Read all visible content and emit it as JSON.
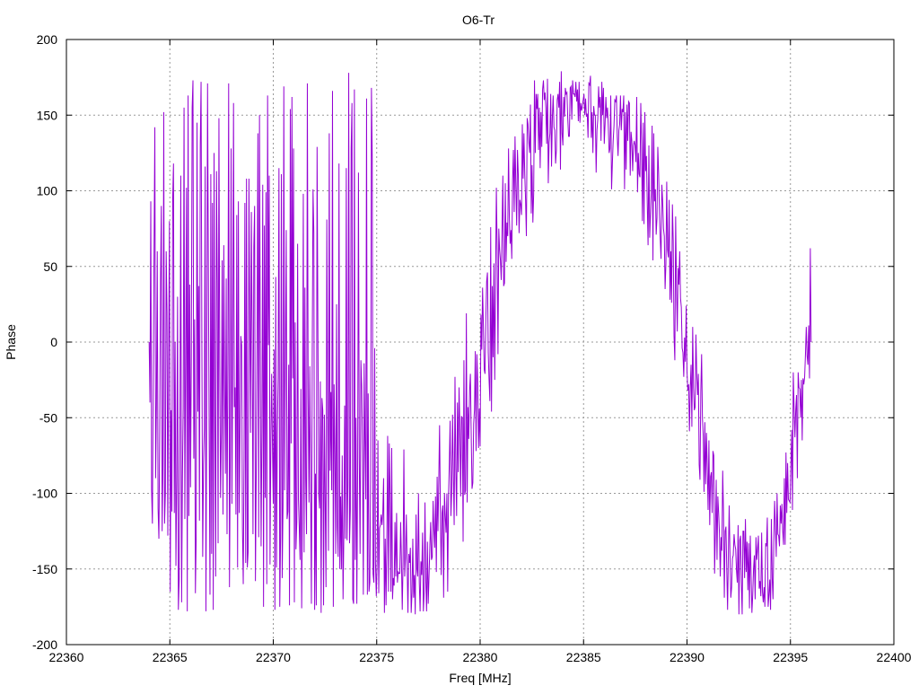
{
  "chart_data": {
    "type": "line",
    "title": "O6-Tr",
    "xlabel": "Freq [MHz]",
    "ylabel": "Phase",
    "xlim": [
      22360,
      22400
    ],
    "ylim": [
      -200,
      200
    ],
    "x_ticks": [
      22360,
      22365,
      22370,
      22375,
      22380,
      22385,
      22390,
      22395,
      22400
    ],
    "y_ticks": [
      -200,
      -150,
      -100,
      -50,
      0,
      50,
      100,
      150,
      200
    ],
    "grid": true,
    "legend": "none",
    "series_color": "#9400d3",
    "series": [
      {
        "x_start": 22364.0,
        "x_end": 22396.0,
        "points": 780,
        "values": [
          0,
          -40,
          93,
          -98,
          -120,
          -20,
          57,
          142,
          -90,
          -40,
          60,
          -110,
          -130,
          -60,
          40,
          90,
          -125,
          -80,
          152,
          -120,
          -100,
          60,
          20,
          -128,
          -10,
          80,
          -165,
          -45,
          -112,
          95,
          118,
          -113,
          0,
          -148,
          -92,
          30,
          -177,
          -157,
          -50,
          110,
          -172,
          -89,
          -43,
          155,
          -117,
          -10,
          102,
          -178,
          163,
          -115,
          38,
          -96,
          -11,
          155,
          173,
          -77,
          15,
          -166,
          -128,
          145,
          -46,
          37,
          -118,
          130,
          172,
          -2,
          -142,
          -81,
          -57,
          116,
          -178,
          -16,
          171,
          48,
          -62,
          -167,
          111,
          -140,
          92,
          -177,
          125,
          -48,
          -155,
          113,
          40,
          -133,
          148,
          -15,
          -103,
          -59,
          54,
          -114,
          64,
          -28,
          -87,
          42,
          -127,
          -14,
          171,
          -162,
          -73,
          128,
          -107,
          -13,
          158,
          -43,
          -30,
          -114,
          84,
          -149,
          93,
          -113,
          -55,
          4,
          -2,
          -123,
          -160,
          -77,
          92,
          -146,
          108,
          -149,
          -139,
          108,
          16,
          -60,
          86,
          1,
          -127,
          63,
          90,
          -158,
          -87,
          -1,
          138,
          -129,
          150,
          -7,
          -135,
          -58,
          104,
          -175,
          77,
          -103,
          99,
          -160,
          163,
          -2,
          110,
          -147,
          -67,
          -21,
          -69,
          -107,
          -5,
          -177,
          43,
          -149,
          -60,
          -23,
          115,
          -175,
          -129,
          111,
          -156,
          -108,
          169,
          -98,
          -11,
          74,
          -117,
          -112,
          -15,
          -174,
          154,
          -67,
          162,
          -24,
          128,
          -172,
          13,
          -137,
          -119,
          65,
          -104,
          -122,
          -144,
          -31,
          -176,
          -99,
          98,
          -139,
          36,
          -91,
          -127,
          171,
          -37,
          -106,
          -16,
          -93,
          -173,
          -12,
          101,
          72,
          -177,
          -87,
          -174,
          129,
          8,
          -100,
          -110,
          -26,
          -179,
          -37,
          -45,
          -174,
          -48,
          -105,
          -162,
          81,
          -37,
          -138,
          138,
          -85,
          -33,
          -98,
          166,
          -175,
          -28,
          -74,
          -140,
          25,
          -122,
          -142,
          118,
          -150,
          -102,
          -150,
          -75,
          -170,
          -126,
          -42,
          -130,
          115,
          -131,
          -94,
          178,
          -133,
          -111,
          128,
          158,
          -170,
          -173,
          167,
          -144,
          -50,
          -173,
          -85,
          112,
          -76,
          -140,
          -12,
          -29,
          -74,
          -167,
          -14,
          -65,
          -104,
          161,
          -167,
          -34,
          -165,
          -159,
          -92,
          168,
          121,
          -153,
          -159,
          -4,
          -146,
          -168,
          -145,
          -65,
          -166,
          -123,
          -121,
          -114,
          -121,
          -113,
          -90,
          -179,
          -130,
          -174,
          -133,
          -62,
          -165,
          -67,
          -99,
          -165,
          -70,
          -170,
          -156,
          -161,
          -119,
          -155,
          -113,
          -159,
          -152,
          -153,
          -153,
          -119,
          -144,
          -177,
          -145,
          -71,
          -155,
          -142,
          -114,
          -148,
          -179,
          -140,
          -146,
          -136,
          -179,
          -166,
          -130,
          -169,
          -154,
          -180,
          -114,
          -150,
          -155,
          -100,
          -159,
          -178,
          -145,
          -154,
          -126,
          -178,
          -165,
          -106,
          -157,
          -178,
          -132,
          -173,
          -155,
          -135,
          -119,
          -144,
          -142,
          -105,
          -124,
          -136,
          -102,
          -152,
          -89,
          -125,
          -92,
          -55,
          -113,
          -154,
          -113,
          -108,
          -169,
          -100,
          -115,
          -126,
          -100,
          -165,
          -102,
          -80,
          -52,
          -115,
          -98,
          -48,
          -88,
          -121,
          -23,
          -83,
          -115,
          -40,
          -86,
          -30,
          -57,
          -102,
          -49,
          -50,
          -132,
          -12,
          -101,
          -98,
          19,
          -106,
          -43,
          -64,
          -32,
          -21,
          -62,
          -97,
          -93,
          -54,
          -45,
          -6,
          -72,
          -8,
          -27,
          -70,
          -44,
          -69,
          18,
          -5,
          36,
          11,
          -18,
          -21,
          14,
          40,
          46,
          -7,
          -25,
          -39,
          76,
          -46,
          37,
          -10,
          52,
          -25,
          40,
          102,
          60,
          -8,
          75,
          61,
          54,
          41,
          75,
          110,
          37,
          39,
          105,
          53,
          79,
          70,
          128,
          83,
          65,
          74,
          55,
          107,
          127,
          86,
          136,
          103,
          77,
          127,
          111,
          72,
          94,
          91,
          84,
          144,
          108,
          138,
          111,
          94,
          70,
          148,
          144,
          132,
          125,
          157,
          85,
          117,
          79,
          98,
          173,
          125,
          164,
          154,
          164,
          127,
          155,
          115,
          152,
          129,
          167,
          173,
          160,
          165,
          155,
          131,
          174,
          105,
          132,
          138,
          164,
          116,
          148,
          163,
          142,
          140,
          118,
          127,
          160,
          164,
          155,
          172,
          114,
          179,
          138,
          130,
          162,
          149,
          168,
          164,
          165,
          148,
          136,
          136,
          168,
          169,
          147,
          173,
          164,
          164,
          162,
          172,
          159,
          167,
          146,
          172,
          145,
          158,
          153,
          156,
          160,
          164,
          150,
          161,
          149,
          151,
          135,
          171,
          170,
          176,
          135,
          152,
          125,
          156,
          150,
          150,
          112,
          140,
          147,
          169,
          155,
          162,
          133,
          172,
          150,
          168,
          131,
          144,
          162,
          148,
          155,
          142,
          125,
          128,
          163,
          101,
          118,
          133,
          143,
          160,
          159,
          163,
          136,
          123,
          140,
          144,
          163,
          140,
          154,
          152,
          163,
          101,
          152,
          114,
          157,
          133,
          159,
          158,
          110,
          139,
          133,
          113,
          130,
          133,
          130,
          119,
          162,
          99,
          125,
          111,
          109,
          158,
          131,
          80,
          145,
          78,
          152,
          113,
          123,
          92,
          64,
          130,
          69,
          85,
          100,
          143,
          54,
          138,
          93,
          101,
          71,
          82,
          129,
          112,
          86,
          68,
          55,
          104,
          93,
          75,
          70,
          35,
          52,
          106,
          61,
          56,
          94,
          28,
          60,
          26,
          91,
          67,
          4,
          -12,
          83,
          37,
          7,
          49,
          38,
          60,
          29,
          23,
          -4,
          -7,
          -23,
          3,
          -13,
          24,
          -19,
          -32,
          -28,
          -59,
          -30,
          -15,
          -56,
          10,
          -30,
          -45,
          -43,
          5,
          -21,
          -35,
          -21,
          -81,
          -91,
          -33,
          -8,
          -50,
          -62,
          -99,
          -53,
          -94,
          -60,
          -84,
          -111,
          -65,
          -121,
          -89,
          -86,
          -113,
          -72,
          -75,
          -153,
          -126,
          -91,
          -144,
          -102,
          -113,
          -127,
          -155,
          -129,
          -138,
          -85,
          -113,
          -169,
          -125,
          -122,
          -150,
          -177,
          -140,
          -108,
          -142,
          -169,
          -162,
          -143,
          -141,
          -127,
          -134,
          -137,
          -151,
          -159,
          -121,
          -180,
          -131,
          -128,
          -159,
          -180,
          -125,
          -125,
          -156,
          -117,
          -152,
          -132,
          -164,
          -133,
          -176,
          -128,
          -154,
          -179,
          -167,
          -150,
          -141,
          -170,
          -129,
          -144,
          -137,
          -128,
          -163,
          -158,
          -168,
          -126,
          -165,
          -172,
          -162,
          -175,
          -133,
          -135,
          -116,
          -175,
          -167,
          -157,
          -177,
          -117,
          -156,
          -170,
          -132,
          -105,
          -122,
          -142,
          -100,
          -127,
          -128,
          -135,
          -108,
          -120,
          -107,
          -125,
          -134,
          -90,
          -134,
          -73,
          -113,
          -80,
          -104,
          -105,
          -106,
          -82,
          -58,
          -111,
          -20,
          -44,
          -63,
          -45,
          -35,
          -90,
          -20,
          -30,
          -31,
          -50,
          -25,
          -65,
          -24,
          -28,
          -23,
          -8,
          10,
          -9,
          -15,
          11,
          -24,
          62,
          0
        ]
      }
    ]
  }
}
